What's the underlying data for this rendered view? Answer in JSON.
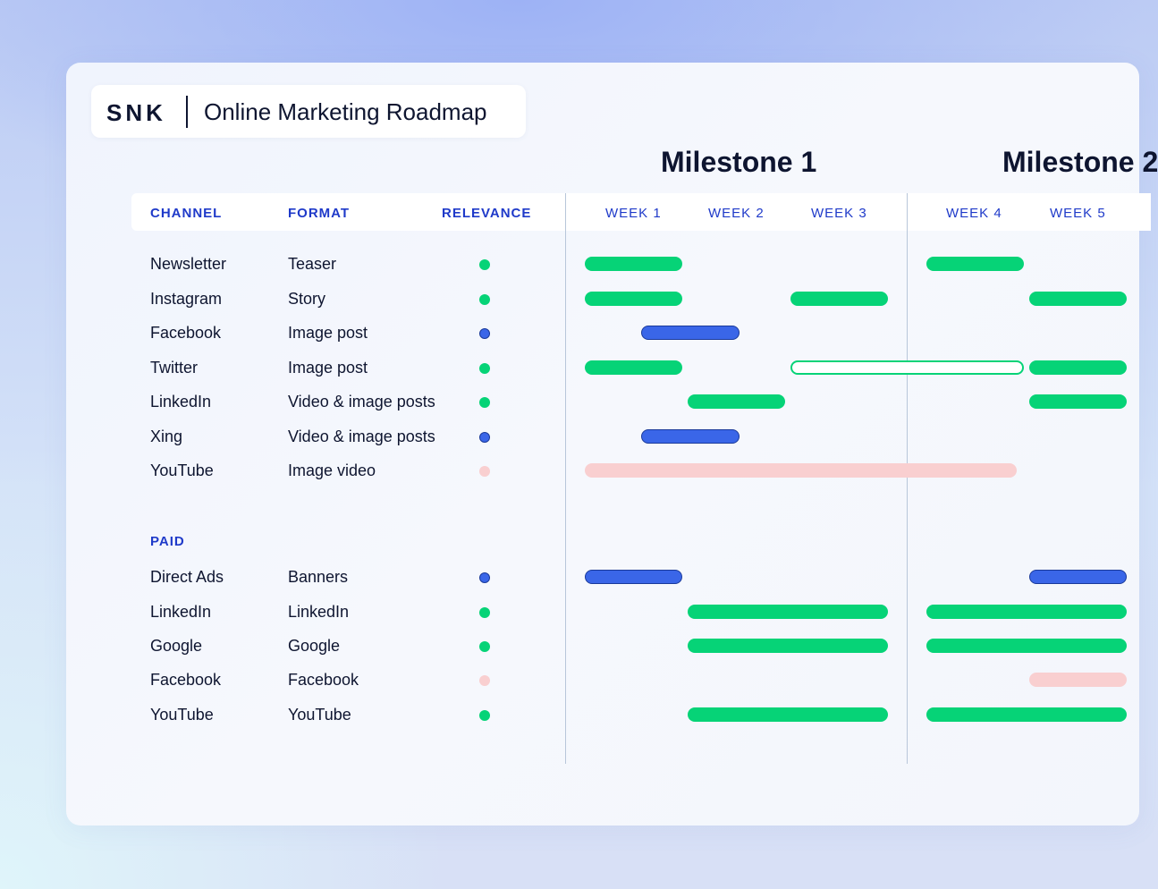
{
  "header": {
    "brand": "SNK",
    "title": "Online Marketing Roadmap"
  },
  "milestones": [
    "Milestone 1",
    "Milestone 2"
  ],
  "columns": {
    "channel": "CHANNEL",
    "format": "FORMAT",
    "relevance": "RELEVANCE",
    "weeks": [
      "WEEK 1",
      "WEEK 2",
      "WEEK 3",
      "WEEK 4",
      "WEEK 5"
    ]
  },
  "colors": {
    "green": "#06d377",
    "blue": "#3a66e8",
    "pink": "#f9cfd0",
    "accent_text": "#1f3ac9"
  },
  "organic": [
    {
      "channel": "Newsletter",
      "format": "Teaser",
      "relevance": "green",
      "bars": [
        {
          "start": 1,
          "end": 1.95,
          "color": "green"
        },
        {
          "start": 4,
          "end": 4.95,
          "color": "green"
        }
      ]
    },
    {
      "channel": "Instagram",
      "format": "Story",
      "relevance": "green",
      "bars": [
        {
          "start": 1,
          "end": 1.95,
          "color": "green"
        },
        {
          "start": 3,
          "end": 3.95,
          "color": "green"
        },
        {
          "start": 5,
          "end": 5.95,
          "color": "green"
        }
      ]
    },
    {
      "channel": "Facebook",
      "format": "Image post",
      "relevance": "blue",
      "bars": [
        {
          "start": 1.55,
          "end": 2.5,
          "color": "blue"
        }
      ]
    },
    {
      "channel": "Twitter",
      "format": "Image post",
      "relevance": "green",
      "bars": [
        {
          "start": 1,
          "end": 1.95,
          "color": "green"
        },
        {
          "start": 3,
          "end": 4.95,
          "color": "green",
          "outline": true
        },
        {
          "start": 5,
          "end": 5.95,
          "color": "green"
        }
      ]
    },
    {
      "channel": "LinkedIn",
      "format": "Video & image posts",
      "relevance": "green",
      "bars": [
        {
          "start": 2,
          "end": 2.95,
          "color": "green"
        },
        {
          "start": 5,
          "end": 5.95,
          "color": "green"
        }
      ]
    },
    {
      "channel": "Xing",
      "format": "Video & image posts",
      "relevance": "blue",
      "bars": [
        {
          "start": 1.55,
          "end": 2.5,
          "color": "blue"
        }
      ]
    },
    {
      "channel": "YouTube",
      "format": "Image video",
      "relevance": "pink",
      "bars": [
        {
          "start": 1,
          "end": 4.88,
          "color": "pink"
        }
      ]
    }
  ],
  "paid_label": "PAID",
  "paid": [
    {
      "channel": "Direct Ads",
      "format": "Banners",
      "relevance": "blue",
      "bars": [
        {
          "start": 1,
          "end": 1.95,
          "color": "blue"
        },
        {
          "start": 5,
          "end": 5.95,
          "color": "blue"
        }
      ]
    },
    {
      "channel": "LinkedIn",
      "format": "LinkedIn",
      "relevance": "green",
      "bars": [
        {
          "start": 2,
          "end": 3.95,
          "color": "green"
        },
        {
          "start": 4,
          "end": 5.95,
          "color": "green"
        }
      ]
    },
    {
      "channel": "Google",
      "format": "Google",
      "relevance": "green",
      "bars": [
        {
          "start": 2,
          "end": 3.95,
          "color": "green"
        },
        {
          "start": 4,
          "end": 5.95,
          "color": "green"
        }
      ]
    },
    {
      "channel": "Facebook",
      "format": "Facebook",
      "relevance": "pink",
      "bars": [
        {
          "start": 5,
          "end": 5.95,
          "color": "pink"
        }
      ]
    },
    {
      "channel": "YouTube",
      "format": "YouTube",
      "relevance": "green",
      "bars": [
        {
          "start": 2,
          "end": 3.95,
          "color": "green"
        },
        {
          "start": 4,
          "end": 5.95,
          "color": "green"
        }
      ]
    }
  ]
}
